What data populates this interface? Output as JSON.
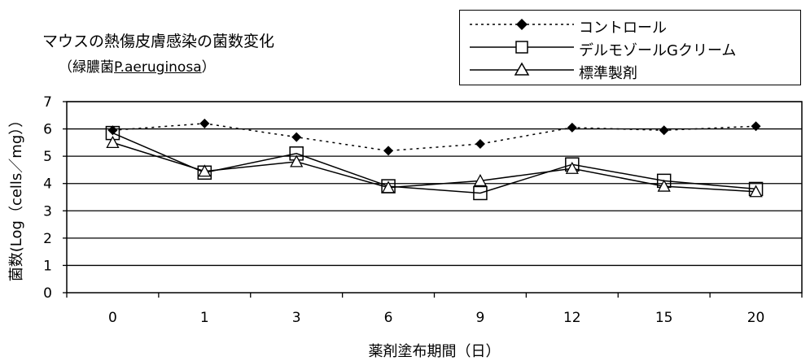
{
  "title": {
    "line1": "マウスの熱傷皮膚感染の菌数変化",
    "line2_prefix": "（緑膿菌",
    "line2_organism": "P.aeruginosa",
    "line2_suffix": "）"
  },
  "chart_data": {
    "type": "line",
    "xlabel": "薬剤塗布期間（日）",
    "ylabel": "菌数(Log（cells／mg））",
    "categories": [
      "0",
      "1",
      "3",
      "6",
      "9",
      "12",
      "15",
      "20"
    ],
    "ylim": [
      0,
      7
    ],
    "yticks": [
      0,
      1,
      2,
      3,
      4,
      5,
      6,
      7
    ],
    "grid": true,
    "legend_position": "top-right",
    "series": [
      {
        "name": "コントロール",
        "marker": "diamond-filled",
        "line": "dotted",
        "values": [
          5.95,
          6.2,
          5.7,
          5.2,
          5.45,
          6.05,
          5.95,
          6.1
        ]
      },
      {
        "name": "デルモゾールGクリーム",
        "marker": "square-open",
        "line": "solid",
        "values": [
          5.85,
          4.4,
          5.1,
          3.9,
          3.65,
          4.7,
          4.1,
          3.8
        ]
      },
      {
        "name": "標準製剤",
        "marker": "triangle-open",
        "line": "solid",
        "values": [
          5.5,
          4.45,
          4.8,
          3.85,
          4.1,
          4.55,
          3.9,
          3.7
        ]
      }
    ]
  }
}
